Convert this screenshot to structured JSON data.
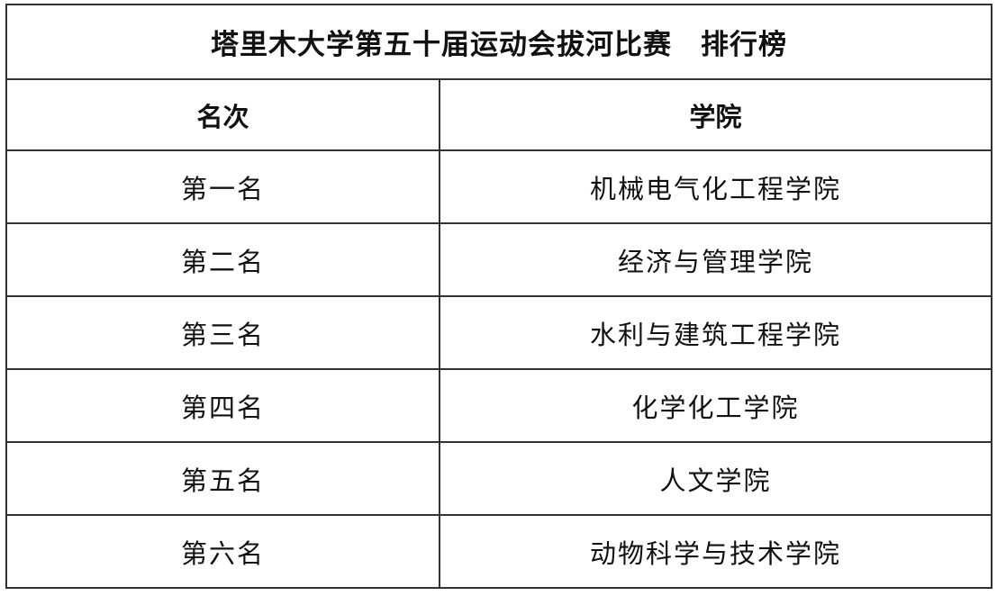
{
  "table": {
    "title": "塔里木大学第五十届运动会拔河比赛　排行榜",
    "headers": [
      "名次",
      "学院"
    ],
    "rows": [
      {
        "rank": "第一名",
        "college": "机械电气化工程学院"
      },
      {
        "rank": "第二名",
        "college": "经济与管理学院"
      },
      {
        "rank": "第三名",
        "college": "水利与建筑工程学院"
      },
      {
        "rank": "第四名",
        "college": "化学化工学院"
      },
      {
        "rank": "第五名",
        "college": "人文学院"
      },
      {
        "rank": "第六名",
        "college": "动物科学与技术学院"
      }
    ]
  }
}
